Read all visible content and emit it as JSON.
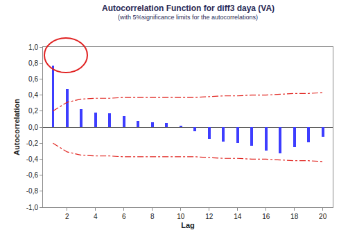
{
  "chart_data": {
    "type": "bar",
    "title": "Autocorrelation Function for diff3 daya (VA)",
    "subtitle": "(with 5%significance limits for the autocorrelations)",
    "x_label": "Lag",
    "y_label": "Autocorrelation",
    "x": [
      1,
      2,
      3,
      4,
      5,
      6,
      7,
      8,
      9,
      10,
      11,
      12,
      13,
      14,
      15,
      16,
      17,
      18,
      19,
      20
    ],
    "series": [
      {
        "type": "bar",
        "color": "#3d3dff",
        "values": [
          0.77,
          0.47,
          0.22,
          0.18,
          0.17,
          0.14,
          0.08,
          0.06,
          0.05,
          0.02,
          -0.05,
          -0.15,
          -0.18,
          -0.2,
          -0.23,
          -0.29,
          -0.33,
          -0.25,
          -0.19,
          -0.12
        ]
      },
      {
        "type": "line",
        "color": "#e0201b",
        "line_style": "dashdot",
        "values": [
          0.2,
          0.31,
          0.35,
          0.36,
          0.36,
          0.37,
          0.37,
          0.37,
          0.37,
          0.37,
          0.37,
          0.38,
          0.39,
          0.39,
          0.4,
          0.4,
          0.41,
          0.42,
          0.42,
          0.43
        ]
      },
      {
        "type": "line",
        "color": "#e0201b",
        "line_style": "dashdot",
        "values": [
          -0.2,
          -0.31,
          -0.35,
          -0.36,
          -0.36,
          -0.37,
          -0.37,
          -0.37,
          -0.37,
          -0.37,
          -0.37,
          -0.38,
          -0.39,
          -0.39,
          -0.4,
          -0.4,
          -0.41,
          -0.42,
          -0.42,
          -0.43
        ]
      }
    ],
    "xlim": [
      0.3,
      20.7
    ],
    "xticks": [
      2,
      4,
      6,
      8,
      10,
      12,
      14,
      16,
      18,
      20
    ],
    "ylim": [
      -1.0,
      1.0
    ],
    "yticks": [
      {
        "value": -1.0,
        "label": "-1,0"
      },
      {
        "value": -0.8,
        "label": "-0,8"
      },
      {
        "value": -0.6,
        "label": "-0,6"
      },
      {
        "value": -0.4,
        "label": "-0,4"
      },
      {
        "value": -0.2,
        "label": "-0,2"
      },
      {
        "value": 0.0,
        "label": "0,0"
      },
      {
        "value": 0.2,
        "label": "0,2"
      },
      {
        "value": 0.4,
        "label": "0,4"
      },
      {
        "value": 0.6,
        "label": "0,6"
      },
      {
        "value": 0.8,
        "label": "0,8"
      },
      {
        "value": 1.0,
        "label": "1,0"
      }
    ],
    "grid": false
  }
}
